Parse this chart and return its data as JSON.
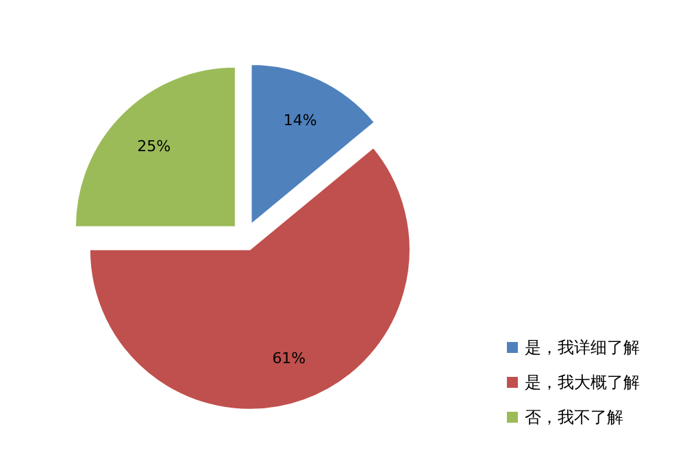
{
  "chart_data": {
    "type": "pie",
    "categories": [
      "是，我详细了解",
      "是，我大概了解",
      "否，我不了解"
    ],
    "values": [
      14,
      61,
      25
    ],
    "value_labels": [
      "14%",
      "61%",
      "25%"
    ],
    "colors": [
      "#4f81bd",
      "#c0504d",
      "#9bbb59"
    ],
    "legend": "right"
  }
}
